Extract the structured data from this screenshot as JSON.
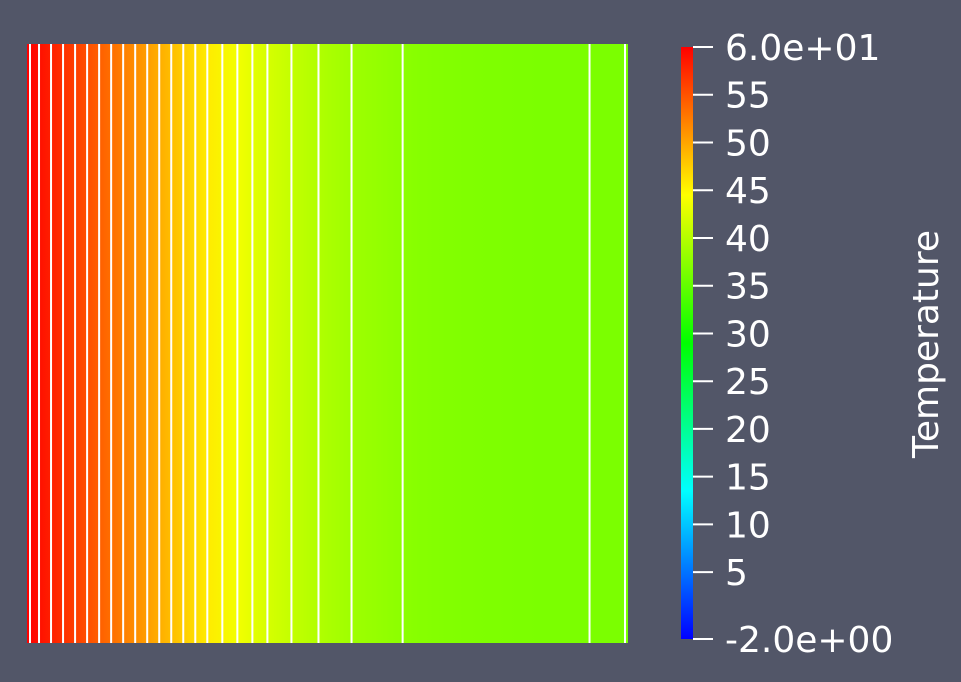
{
  "chart_data": {
    "type": "heatmap",
    "title": "",
    "colorbar": {
      "title": "Temperature",
      "range": [
        -2.0,
        60.0
      ],
      "placement": "right",
      "ticks": [
        {
          "value": 60,
          "label": "6.0e+01"
        },
        {
          "value": 55,
          "label": "55"
        },
        {
          "value": 50,
          "label": "50"
        },
        {
          "value": 45,
          "label": "45"
        },
        {
          "value": 40,
          "label": "40"
        },
        {
          "value": 35,
          "label": "35"
        },
        {
          "value": 30,
          "label": "30"
        },
        {
          "value": 25,
          "label": "25"
        },
        {
          "value": 20,
          "label": "20"
        },
        {
          "value": 15,
          "label": "15"
        },
        {
          "value": 10,
          "label": "10"
        },
        {
          "value": 5,
          "label": "5"
        },
        {
          "value": -2,
          "label": "-2.0e+00"
        }
      ],
      "colormap_stops": [
        {
          "value": -2.0,
          "color": "#0000ff"
        },
        {
          "value": 13.5,
          "color": "#00ffff"
        },
        {
          "value": 29.0,
          "color": "#00ff00"
        },
        {
          "value": 44.5,
          "color": "#ffff00"
        },
        {
          "value": 60.0,
          "color": "#ff0000"
        }
      ]
    },
    "field": {
      "orientation": "horizontal-gradient",
      "x": [
        0.0,
        0.05,
        0.1,
        0.15,
        0.2,
        0.25,
        0.3,
        0.35,
        0.4,
        0.45,
        0.5,
        0.55,
        0.6,
        0.65,
        0.7,
        0.75,
        0.8,
        0.85,
        0.9,
        0.95,
        1.0
      ],
      "temperature": [
        60.0,
        57.6,
        55.2,
        52.8,
        50.4,
        48.0,
        45.7,
        43.8,
        42.0,
        40.6,
        39.4,
        38.5,
        37.8,
        37.2,
        36.9,
        36.7,
        36.6,
        36.5,
        36.5,
        36.5,
        36.5
      ]
    },
    "contour_lines": {
      "color": "#ffffff",
      "x": [
        0.005,
        0.02,
        0.04,
        0.06,
        0.08,
        0.1,
        0.12,
        0.14,
        0.16,
        0.18,
        0.2,
        0.22,
        0.24,
        0.26,
        0.28,
        0.3,
        0.325,
        0.35,
        0.375,
        0.4,
        0.44,
        0.485,
        0.54,
        0.625,
        0.936,
        0.995
      ]
    }
  }
}
